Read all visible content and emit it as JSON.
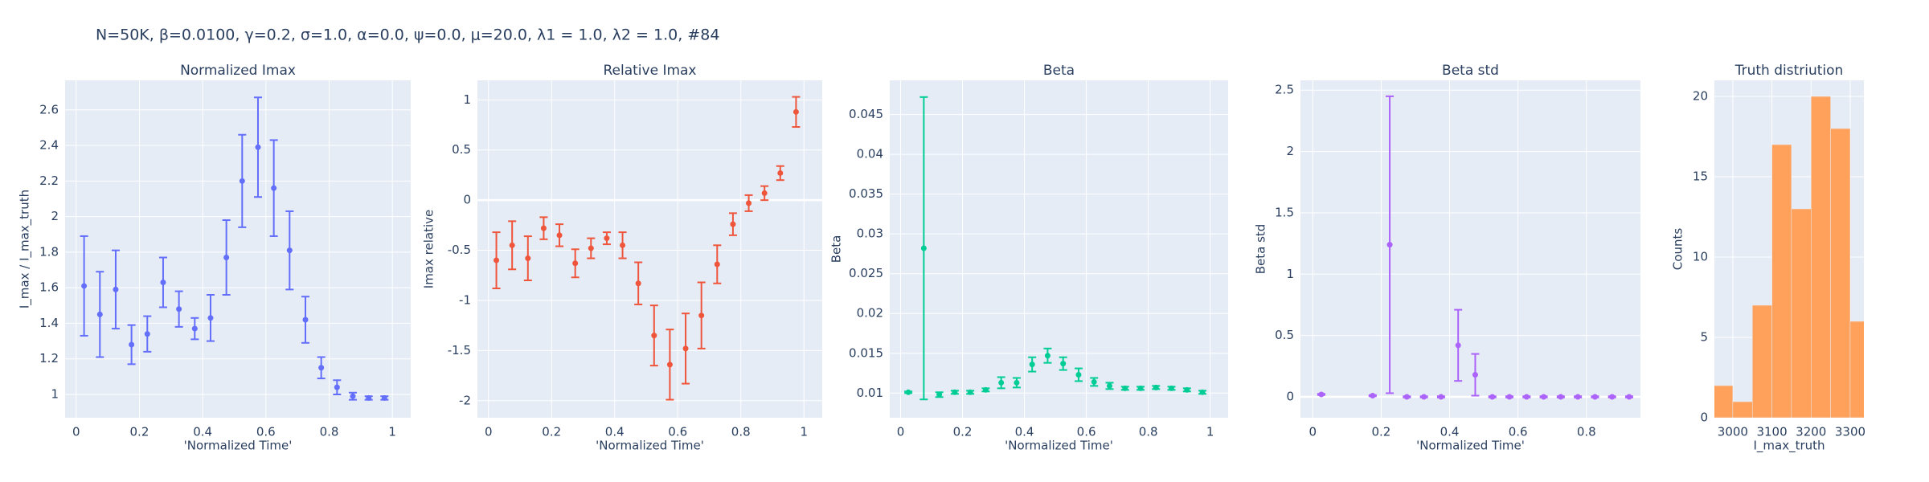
{
  "title": "N=50K, β=0.0100, γ=0.2, σ=1.0,  α=0.0, ψ=0.0, μ=20.0, λ1 = 1.0, λ2 = 1.0, #84",
  "chart_data": [
    {
      "type": "scatter",
      "title": "Normalized Imax",
      "xlabel": "'Normalized Time'",
      "ylabel": "I_max / I_max_truth",
      "color": "#636efa",
      "grid": true,
      "x": [
        0.025,
        0.075,
        0.125,
        0.175,
        0.225,
        0.275,
        0.325,
        0.375,
        0.425,
        0.475,
        0.525,
        0.575,
        0.625,
        0.675,
        0.725,
        0.775,
        0.825,
        0.875,
        0.925,
        0.975
      ],
      "values": [
        1.61,
        1.45,
        1.59,
        1.28,
        1.34,
        1.63,
        1.48,
        1.37,
        1.43,
        1.77,
        2.2,
        2.39,
        2.16,
        1.81,
        1.42,
        1.15,
        1.04,
        0.99,
        0.98,
        0.98
      ],
      "errors": [
        0.28,
        0.24,
        0.22,
        0.11,
        0.1,
        0.14,
        0.1,
        0.06,
        0.13,
        0.21,
        0.26,
        0.28,
        0.27,
        0.22,
        0.13,
        0.06,
        0.04,
        0.02,
        0.01,
        0.01
      ],
      "xlim": [
        -0.035,
        1.058
      ],
      "ylim": [
        0.869,
        2.766
      ],
      "xticks": [
        0,
        0.2,
        0.4,
        0.6,
        0.8,
        1
      ],
      "yticks": [
        1,
        1.2,
        1.4,
        1.6,
        1.8,
        2,
        2.2,
        2.4,
        2.6
      ]
    },
    {
      "type": "scatter",
      "title": "Relative Imax",
      "xlabel": "'Normalized Time'",
      "ylabel": "Imax relative",
      "color": "#EF553B",
      "grid": true,
      "x": [
        0.025,
        0.075,
        0.125,
        0.175,
        0.225,
        0.275,
        0.325,
        0.375,
        0.425,
        0.475,
        0.525,
        0.575,
        0.625,
        0.675,
        0.725,
        0.775,
        0.825,
        0.875,
        0.925,
        0.975
      ],
      "values": [
        -0.6,
        -0.45,
        -0.58,
        -0.28,
        -0.35,
        -0.63,
        -0.48,
        -0.38,
        -0.45,
        -0.83,
        -1.35,
        -1.64,
        -1.48,
        -1.15,
        -0.64,
        -0.24,
        -0.03,
        0.07,
        0.27,
        0.88
      ],
      "errors": [
        0.28,
        0.24,
        0.22,
        0.11,
        0.11,
        0.14,
        0.1,
        0.06,
        0.13,
        0.21,
        0.3,
        0.35,
        0.35,
        0.33,
        0.19,
        0.11,
        0.08,
        0.07,
        0.07,
        0.15
      ],
      "xlim": [
        -0.035,
        1.058
      ],
      "ylim": [
        -2.17,
        1.195
      ],
      "xticks": [
        0,
        0.2,
        0.4,
        0.6,
        0.8,
        1
      ],
      "yticks": [
        -2,
        -1.5,
        -1,
        -0.5,
        0,
        0.5,
        1
      ]
    },
    {
      "type": "scatter",
      "title": "Beta",
      "xlabel": "'Normalized Time'",
      "ylabel": "Beta",
      "color": "#00cc96",
      "grid": true,
      "x": [
        0.025,
        0.075,
        0.125,
        0.175,
        0.225,
        0.275,
        0.325,
        0.375,
        0.425,
        0.475,
        0.525,
        0.575,
        0.625,
        0.675,
        0.725,
        0.775,
        0.825,
        0.875,
        0.925,
        0.975
      ],
      "values": [
        0.0101,
        0.0282,
        0.0098,
        0.0101,
        0.0101,
        0.0104,
        0.0113,
        0.0113,
        0.0136,
        0.0147,
        0.0137,
        0.0123,
        0.0114,
        0.0109,
        0.0106,
        0.0106,
        0.0107,
        0.0106,
        0.0104,
        0.0101
      ],
      "errors": [
        0.0001,
        0.019,
        0.0003,
        0.0002,
        0.0002,
        0.0002,
        0.0007,
        0.0006,
        0.0009,
        0.0009,
        0.0008,
        0.0008,
        0.0005,
        0.0004,
        0.0002,
        0.0002,
        0.0002,
        0.0002,
        0.0002,
        0.0002
      ],
      "xlim": [
        -0.035,
        1.058
      ],
      "ylim": [
        0.0069,
        0.0493
      ],
      "xticks": [
        0,
        0.2,
        0.4,
        0.6,
        0.8,
        1
      ],
      "yticks": [
        0.01,
        0.015,
        0.02,
        0.025,
        0.03,
        0.035,
        0.04,
        0.045
      ]
    },
    {
      "type": "scatter",
      "title": "Beta std",
      "xlabel": "'Normalized Time'",
      "ylabel": "Beta std",
      "color": "#ab63fa",
      "grid": true,
      "x": [
        0.025,
        0.075,
        0.125,
        0.175,
        0.225,
        0.275,
        0.325,
        0.375,
        0.425,
        0.475,
        0.525,
        0.575,
        0.625,
        0.675,
        0.725,
        0.775,
        0.825,
        0.875,
        0.925
      ],
      "values": [
        0.02,
        null,
        null,
        0.01,
        1.24,
        0,
        0,
        0,
        0.42,
        0.18,
        0,
        0,
        0,
        0,
        0,
        0,
        0,
        0,
        0
      ],
      "errors": [
        0.005,
        null,
        null,
        0.005,
        1.21,
        0.005,
        0.005,
        0.005,
        0.29,
        0.17,
        0.005,
        0.005,
        0.005,
        0.005,
        0.005,
        0.005,
        0.005,
        0.005,
        0.005
      ],
      "xlim": [
        -0.036,
        0.958
      ],
      "ylim": [
        -0.17,
        2.58
      ],
      "xticks": [
        0,
        0.2,
        0.4,
        0.6,
        0.8
      ],
      "yticks": [
        0,
        0.5,
        1,
        1.5,
        2,
        2.5
      ]
    },
    {
      "type": "histogram",
      "title": "Truth distriution",
      "xlabel": "I_max_truth",
      "ylabel": "Counts",
      "color": "#FFA15A",
      "grid": true,
      "bins": [
        2950,
        3000,
        3050,
        3100,
        3150,
        3200,
        3250,
        3300,
        3350
      ],
      "values": [
        2,
        1,
        7,
        17,
        13,
        20,
        18,
        6
      ],
      "xlim": [
        2953,
        3335
      ],
      "ylim": [
        0,
        21
      ],
      "xticks": [
        3000,
        3100,
        3200,
        3300
      ],
      "yticks": [
        0,
        5,
        10,
        15,
        20
      ]
    }
  ]
}
